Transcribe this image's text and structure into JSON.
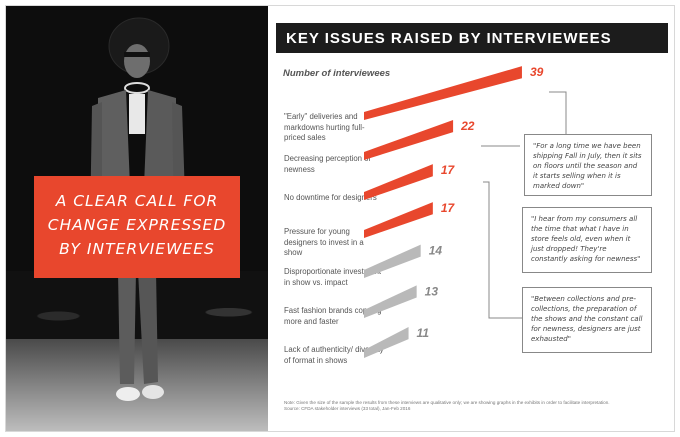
{
  "title": "KEY ISSUES RAISED BY INTERVIEWEES",
  "callout": {
    "lines": [
      "A CLEAR CALL FOR",
      "CHANGE EXPRESSED",
      "BY INTERVIEWEES"
    ]
  },
  "axis_title": "Number of interviewees",
  "categories": [
    {
      "label": "\"Early\" deliveries and markdowns hurting full-priced sales"
    },
    {
      "label": "Decreasing perception of newness"
    },
    {
      "label": "No downtime for designers"
    },
    {
      "label": "Pressure for young designers to invest in a show"
    },
    {
      "label": "Disproportionate investment in show vs. impact"
    },
    {
      "label": "Fast fashion brands copying more and faster"
    },
    {
      "label": "Lack of authenticity/ diversity of format in shows"
    }
  ],
  "quotes": [
    "\"For a long time we have been shipping Fall in July, then it sits on floors until the season and it starts selling when it is marked down\"",
    "\"I hear from my consumers all the time that what I have in store feels old, even when it just dropped! They're constantly asking for newness\"",
    "\"Between collections and pre-collections, the preparation of the shows and the constant call for newness, designers are just exhausted\""
  ],
  "note": "Note: Given the size of the sample the results from these interviews are qualitative only; we are showing graphs in the exhibits in order to facilitate interpretation. Source: CFDA stakeholder interviews (33 total), Jan-Feb 2016",
  "colors": {
    "highlight": "#e8472d",
    "muted": "#b9b9b9",
    "dark": "#1c1c1c"
  },
  "chart_data": {
    "type": "bar",
    "orientation": "horizontal",
    "title": "KEY ISSUES RAISED BY INTERVIEWEES",
    "xlabel": "Number of interviewees",
    "categories": [
      "\"Early\" deliveries and markdowns hurting full-priced sales",
      "Decreasing perception of newness",
      "No downtime for designers",
      "Pressure for young designers to invest in a show",
      "Disproportionate investment in show vs. impact",
      "Fast fashion brands copying more and faster",
      "Lack of authenticity/ diversity of format in shows"
    ],
    "values": [
      39,
      22,
      17,
      17,
      14,
      13,
      11
    ],
    "highlighted": [
      true,
      true,
      true,
      true,
      false,
      false,
      false
    ],
    "grid": false
  }
}
